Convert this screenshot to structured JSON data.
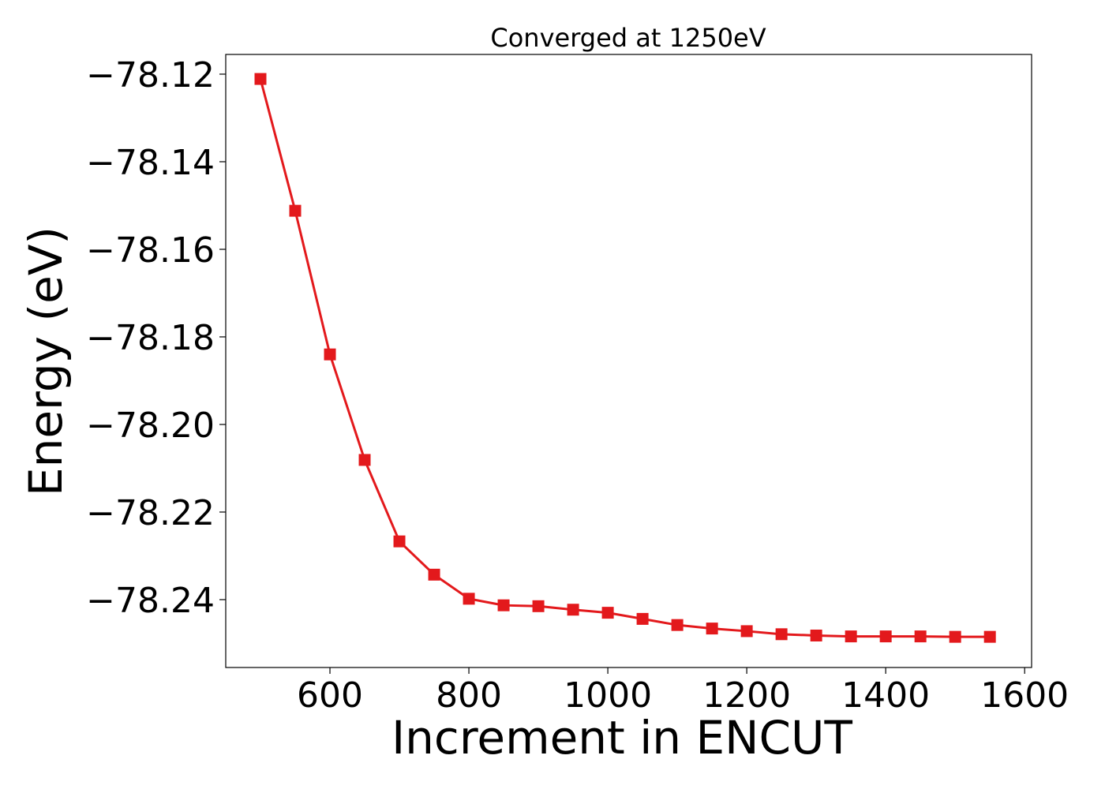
{
  "chart_data": {
    "type": "line",
    "title": "Converged at 1250eV",
    "xlabel": "Increment in ENCUT",
    "ylabel": "Energy (eV)",
    "xlim": [
      450,
      1610
    ],
    "ylim": [
      -78.2555,
      -78.1155
    ],
    "xticks": [
      600,
      800,
      1000,
      1200,
      1400,
      1600
    ],
    "xtick_labels": [
      "600",
      "800",
      "1000",
      "1200",
      "1400",
      "1600"
    ],
    "yticks": [
      -78.12,
      -78.14,
      -78.16,
      -78.18,
      -78.2,
      -78.22,
      -78.24
    ],
    "ytick_labels": [
      "−78.12",
      "−78.14",
      "−78.16",
      "−78.18",
      "−78.20",
      "−78.22",
      "−78.24"
    ],
    "grid": false,
    "series": [
      {
        "color": "#e3191c",
        "marker": "square",
        "x": [
          500,
          550,
          600,
          650,
          700,
          750,
          800,
          850,
          900,
          950,
          1000,
          1050,
          1100,
          1150,
          1200,
          1250,
          1300,
          1350,
          1400,
          1450,
          1500,
          1550
        ],
        "y": [
          -78.1211,
          -78.1512,
          -78.184,
          -78.2081,
          -78.2267,
          -78.2343,
          -78.2398,
          -78.2413,
          -78.2415,
          -78.2423,
          -78.243,
          -78.2444,
          -78.2458,
          -78.2466,
          -78.2472,
          -78.2479,
          -78.2482,
          -78.2484,
          -78.2484,
          -78.2484,
          -78.2485,
          -78.2485
        ]
      }
    ]
  }
}
